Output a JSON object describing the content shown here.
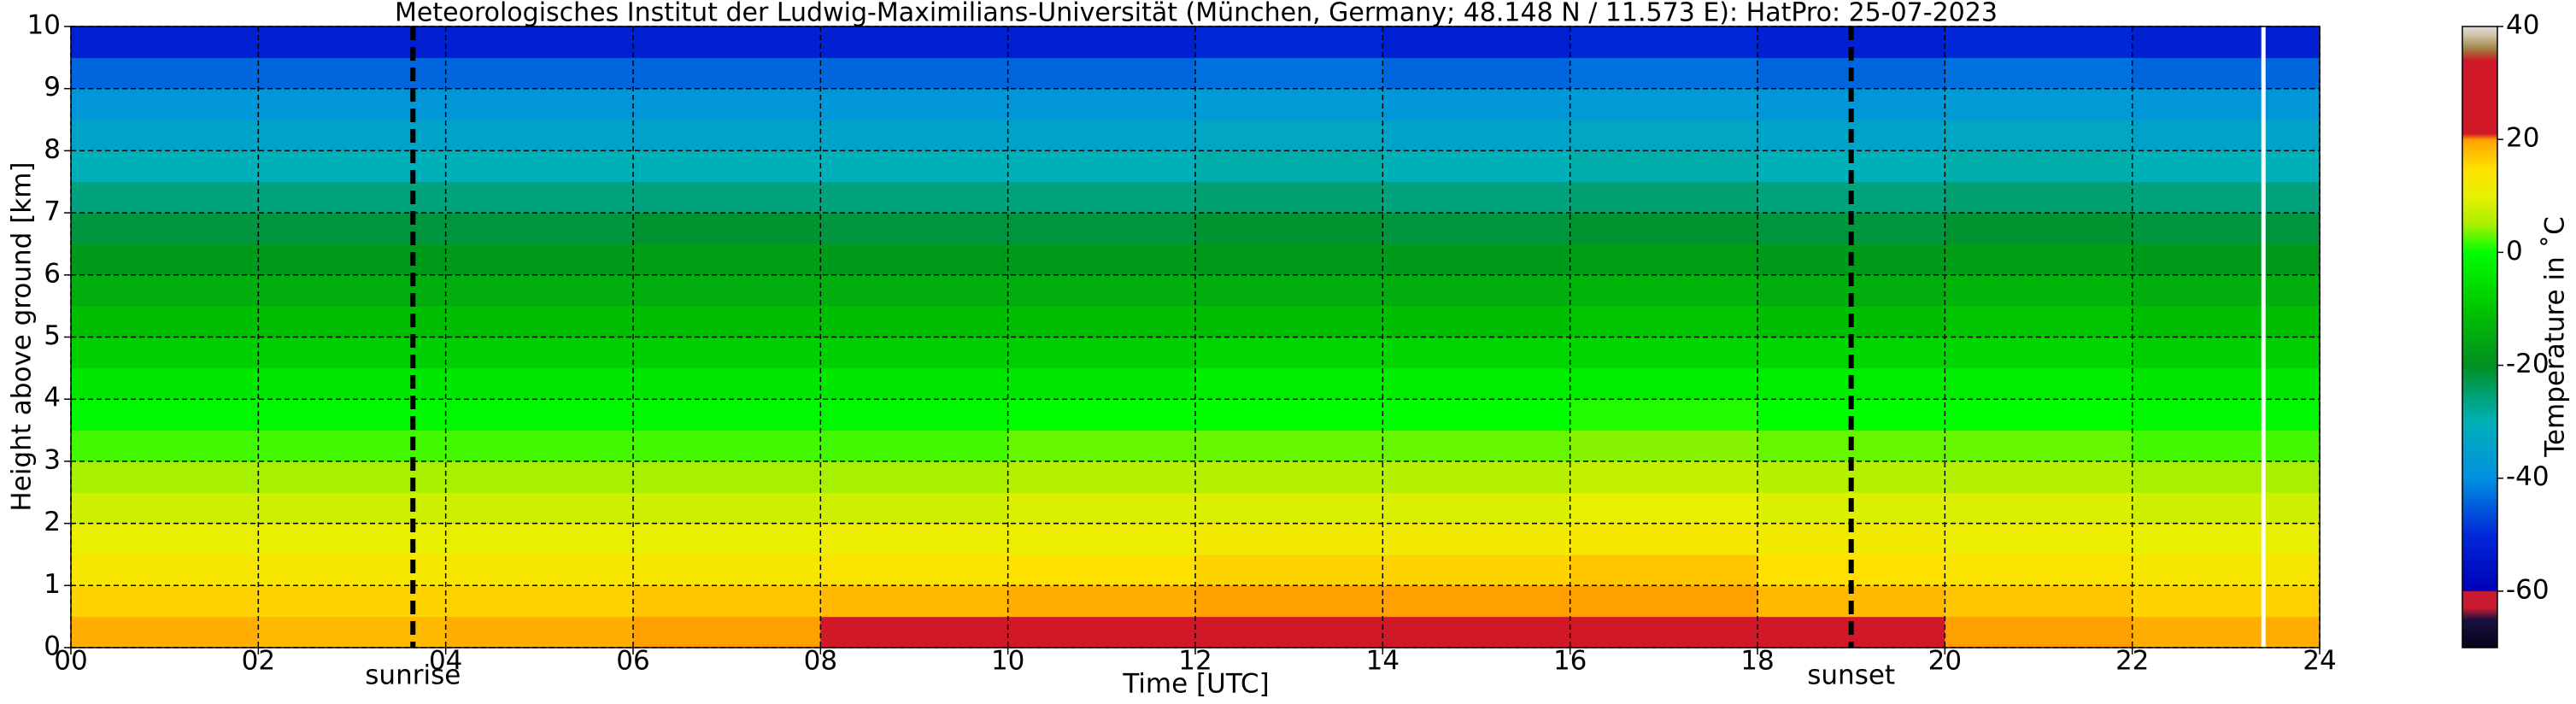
{
  "chart_data": {
    "type": "heatmap",
    "title": "Meteorologisches Institut der Ludwig-Maximilians-Universität (München, Germany; 48.148 N / 11.573 E):    HatPro: 25-07-2023",
    "x_label": "Time [UTC]",
    "y_label": "Height above ground [km]",
    "colorbar_label": "Temperature in ˚C",
    "x_bins": [
      0,
      2,
      4,
      6,
      8,
      10,
      12,
      14,
      16,
      18,
      20,
      22,
      24
    ],
    "y_bins": [
      0,
      0.5,
      1,
      1.5,
      2,
      2.5,
      3,
      3.5,
      4,
      4.5,
      5,
      5.5,
      6,
      6.5,
      7,
      7.5,
      8,
      8.5,
      9,
      9.5,
      10
    ],
    "values": [
      [
        19,
        18,
        19,
        20,
        21,
        22,
        23,
        23,
        23,
        21,
        20,
        19
      ],
      [
        16,
        16,
        16,
        17,
        18,
        19,
        20,
        20,
        20,
        18,
        17,
        16
      ],
      [
        13,
        13,
        13,
        13,
        14,
        15,
        16,
        16,
        17,
        15,
        14,
        13
      ],
      [
        10,
        10,
        10,
        10,
        11,
        11,
        12,
        12,
        13,
        12,
        11,
        10
      ],
      [
        8,
        8,
        8,
        8,
        8,
        9,
        9,
        9,
        10,
        9,
        9,
        8
      ],
      [
        5,
        5,
        5,
        5,
        5,
        6,
        6,
        6,
        7,
        6,
        6,
        5
      ],
      [
        2,
        2,
        2,
        2,
        2,
        3,
        3,
        3,
        4,
        3,
        3,
        2
      ],
      [
        -1,
        -1,
        -1,
        -1,
        -1,
        0,
        0,
        0,
        1,
        0,
        0,
        -1
      ],
      [
        -4,
        -4,
        -4,
        -4,
        -4,
        -4,
        -3,
        -3,
        -3,
        -3,
        -3,
        -4
      ],
      [
        -8,
        -8,
        -8,
        -8,
        -8,
        -8,
        -7,
        -7,
        -7,
        -7,
        -7,
        -8
      ],
      [
        -11,
        -11,
        -11,
        -11,
        -11,
        -11,
        -11,
        -11,
        -10,
        -11,
        -10,
        -11
      ],
      [
        -14,
        -14,
        -14,
        -14,
        -14,
        -14,
        -14,
        -14,
        -13,
        -14,
        -13,
        -14
      ],
      [
        -18,
        -18,
        -18,
        -17,
        -18,
        -18,
        -18,
        -18,
        -17,
        -18,
        -17,
        -18
      ],
      [
        -22,
        -22,
        -22,
        -21,
        -22,
        -22,
        -21,
        -22,
        -21,
        -22,
        -21,
        -22
      ],
      [
        -26,
        -26,
        -26,
        -26,
        -26,
        -26,
        -25,
        -26,
        -25,
        -26,
        -25,
        -26
      ],
      [
        -30,
        -30,
        -30,
        -30,
        -30,
        -30,
        -29,
        -30,
        -29,
        -30,
        -29,
        -30
      ],
      [
        -34,
        -34,
        -34,
        -34,
        -34,
        -34,
        -33,
        -34,
        -33,
        -34,
        -33,
        -34
      ],
      [
        -38,
        -38,
        -38,
        -38,
        -38,
        -38,
        -37,
        -38,
        -37,
        -38,
        -37,
        -38
      ],
      [
        -44,
        -44,
        -44,
        -44,
        -44,
        -44,
        -43,
        -44,
        -43,
        -44,
        -43,
        -44
      ],
      [
        -52,
        -52,
        -52,
        -52,
        -52,
        -52,
        -50,
        -52,
        -50,
        -52,
        -50,
        -52
      ]
    ],
    "xlim": [
      0,
      24
    ],
    "ylim": [
      0,
      10
    ],
    "xticks": [
      {
        "value": 0,
        "label": "00"
      },
      {
        "value": 2,
        "label": "02"
      },
      {
        "value": 4,
        "label": "04"
      },
      {
        "value": 6,
        "label": "06"
      },
      {
        "value": 8,
        "label": "08"
      },
      10,
      12,
      14,
      16,
      18,
      20,
      22,
      24
    ],
    "yticks": [
      0,
      1,
      2,
      3,
      4,
      5,
      6,
      7,
      8,
      9,
      10
    ],
    "grid": true,
    "markers": [
      {
        "x": 3.65,
        "label": "sunrise"
      },
      {
        "x": 19.0,
        "label": "sunset"
      }
    ],
    "data_end_line": 23.4,
    "clim": [
      -70,
      40
    ],
    "cticks": [
      -60,
      -40,
      -20,
      0,
      20,
      40
    ],
    "colorscale": [
      {
        "value": -70,
        "color": "#05051a"
      },
      {
        "value": -65,
        "color": "#1a1040"
      },
      {
        "value": -63,
        "color": "#c81a30"
      },
      {
        "value": -60,
        "color": "#c81a30"
      },
      {
        "value": -59.9,
        "color": "#0000b8"
      },
      {
        "value": -50,
        "color": "#0028d8"
      },
      {
        "value": -40,
        "color": "#0090e0"
      },
      {
        "value": -30,
        "color": "#00b0b8"
      },
      {
        "value": -25,
        "color": "#00a070"
      },
      {
        "value": -20,
        "color": "#009020"
      },
      {
        "value": -10,
        "color": "#00c400"
      },
      {
        "value": 0,
        "color": "#00ff00"
      },
      {
        "value": 5,
        "color": "#a8f000"
      },
      {
        "value": 10,
        "color": "#e8f000"
      },
      {
        "value": 15,
        "color": "#ffe000"
      },
      {
        "value": 20,
        "color": "#ffa000"
      },
      {
        "value": 21,
        "color": "#d01828"
      },
      {
        "value": 34,
        "color": "#d01828"
      },
      {
        "value": 36,
        "color": "#a08040"
      },
      {
        "value": 38,
        "color": "#c8b898"
      },
      {
        "value": 40,
        "color": "#e0e0e0"
      }
    ]
  }
}
